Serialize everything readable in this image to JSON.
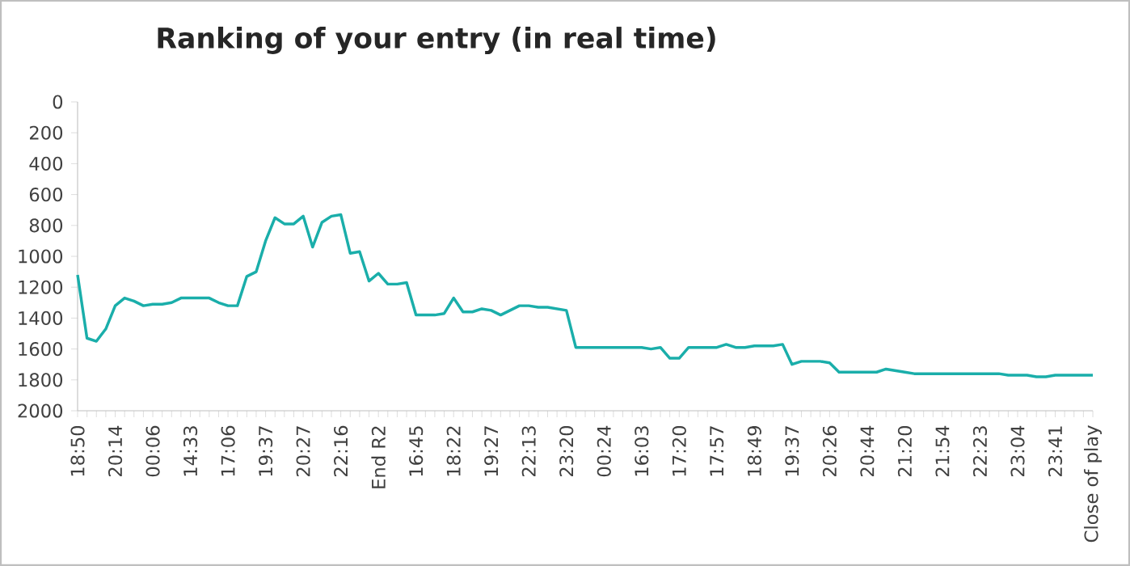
{
  "chart_data": {
    "type": "line",
    "title": "Ranking of your entry (in real time)",
    "categories": [
      "18:50",
      null,
      null,
      null,
      "20:14",
      null,
      null,
      null,
      "00:06",
      null,
      null,
      null,
      "14:33",
      null,
      null,
      null,
      "17:06",
      null,
      null,
      null,
      "19:37",
      null,
      null,
      null,
      "20:27",
      null,
      null,
      null,
      "22:16",
      null,
      null,
      null,
      "End R2",
      null,
      null,
      null,
      "16:45",
      null,
      null,
      null,
      "18:22",
      null,
      null,
      null,
      "19:27",
      null,
      null,
      null,
      "22:13",
      null,
      null,
      null,
      "23:20",
      null,
      null,
      null,
      "00:24",
      null,
      null,
      null,
      "16:03",
      null,
      null,
      null,
      "17:20",
      null,
      null,
      null,
      "17:57",
      null,
      null,
      null,
      "18:49",
      null,
      null,
      null,
      "19:37",
      null,
      null,
      null,
      "20:26",
      null,
      null,
      null,
      "20:44",
      null,
      null,
      null,
      "21:20",
      null,
      null,
      null,
      "21:54",
      null,
      null,
      null,
      "22:23",
      null,
      null,
      null,
      "23:04",
      null,
      null,
      null,
      "23:41",
      null,
      null,
      null,
      "Close of play"
    ],
    "values": [
      1120,
      1530,
      1550,
      1470,
      1320,
      1270,
      1290,
      1320,
      1310,
      1310,
      1300,
      1270,
      1270,
      1270,
      1270,
      1300,
      1320,
      1320,
      1130,
      1100,
      900,
      750,
      790,
      790,
      740,
      940,
      780,
      740,
      730,
      980,
      970,
      1160,
      1110,
      1180,
      1180,
      1170,
      1380,
      1380,
      1380,
      1370,
      1270,
      1360,
      1360,
      1340,
      1350,
      1380,
      1350,
      1320,
      1320,
      1330,
      1330,
      1340,
      1350,
      1590,
      1590,
      1590,
      1590,
      1590,
      1590,
      1590,
      1590,
      1600,
      1590,
      1660,
      1660,
      1590,
      1590,
      1590,
      1590,
      1570,
      1590,
      1590,
      1580,
      1580,
      1580,
      1570,
      1700,
      1680,
      1680,
      1680,
      1690,
      1750,
      1750,
      1750,
      1750,
      1750,
      1730,
      1740,
      1750,
      1760,
      1760,
      1760,
      1760,
      1760,
      1760,
      1760,
      1760,
      1760,
      1760,
      1770,
      1770,
      1770,
      1780,
      1780,
      1770,
      1770,
      1770,
      1770,
      1770
    ],
    "color": "#1aaeaa",
    "ylim": [
      2000,
      0
    ],
    "yticks": [
      0,
      200,
      400,
      600,
      800,
      1000,
      1200,
      1400,
      1600,
      1800,
      2000
    ],
    "marker": "none",
    "line_style": "solid",
    "grid": false
  }
}
